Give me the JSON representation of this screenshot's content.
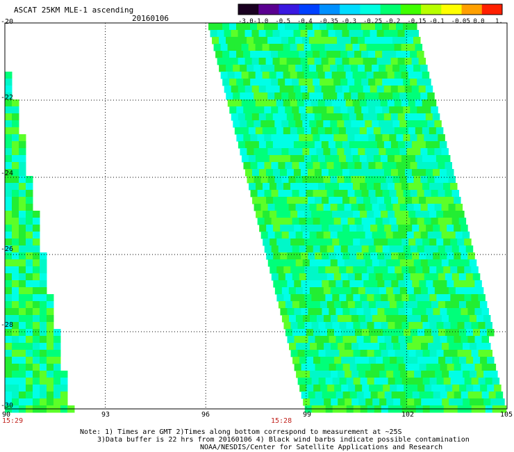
{
  "title": "ASCAT 25KM MLE-1 ascending",
  "date": "20160106",
  "colorbar": {
    "labels": [
      "-3.0",
      "-1.0",
      "-0.5",
      "-0.4",
      "-0.35",
      "-0.3",
      "-0.25",
      "-0.2",
      "-0.15",
      "-0.1",
      "-0.05",
      "0.0",
      "1.0"
    ],
    "colors": [
      "#1a0020",
      "#5a0090",
      "#3a18e0",
      "#0040ff",
      "#0090ff",
      "#00dcff",
      "#00ffe0",
      "#00ff70",
      "#40ff00",
      "#b8ff00",
      "#ffff00",
      "#ffa000",
      "#ff2000"
    ]
  },
  "map": {
    "lon_range": [
      90,
      105
    ],
    "lat_range": [
      -30,
      -20
    ],
    "lon_ticks": [
      "90",
      "93",
      "96",
      "99",
      "102",
      "105"
    ],
    "lat_ticks": [
      "-20",
      "-22",
      "-24",
      "-26",
      "-28",
      "-30"
    ],
    "times": [
      "15:29",
      "15:28"
    ],
    "swath_colors": [
      "#00ff7a",
      "#00ffe6",
      "#22ee33",
      "#00f8c8",
      "#5cff28"
    ]
  },
  "notes": {
    "line1": "Note: 1) Times are GMT 2)Times along bottom correspond to measurement at ~25S",
    "line2": "3)Data buffer is 22 hrs from 20160106 4) Black wind barbs indicate possible contamination",
    "line3": "NOAA/NESDIS/Center for Satellite Applications and Research"
  }
}
